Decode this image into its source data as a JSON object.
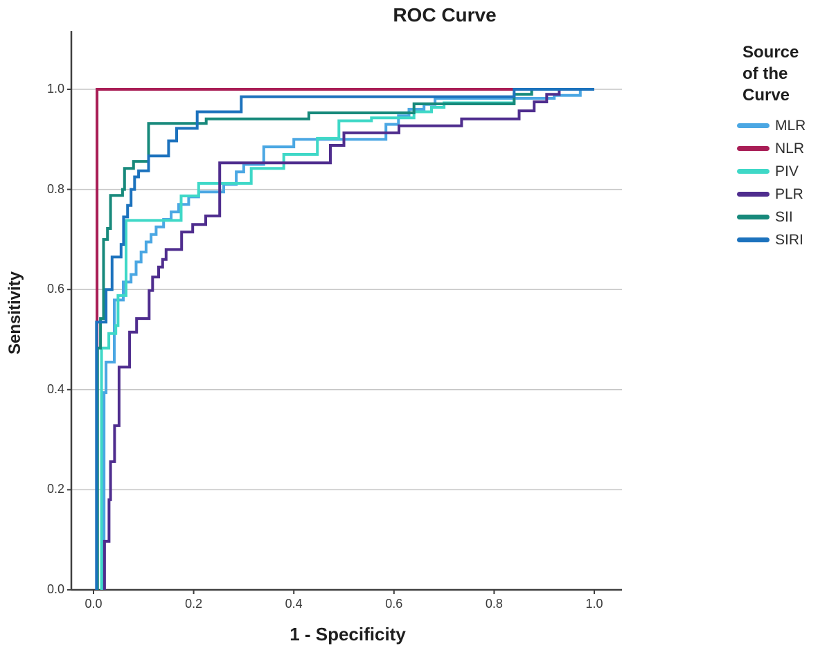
{
  "title": "ROC Curve",
  "axes": {
    "x": {
      "label": "1 - Specificity",
      "ticks": [
        "0.0",
        "0.2",
        "0.4",
        "0.6",
        "0.8",
        "1.0"
      ],
      "tick_values": [
        0,
        0.2,
        0.4,
        0.6,
        0.8,
        1.0
      ],
      "range": [
        0,
        1
      ]
    },
    "y": {
      "label": "Sensitivity",
      "ticks": [
        "0.0",
        "0.2",
        "0.4",
        "0.6",
        "0.8",
        "1.0"
      ],
      "tick_values": [
        0,
        0.2,
        0.4,
        0.6,
        0.8,
        1.0
      ],
      "range": [
        0,
        1
      ]
    }
  },
  "legend": {
    "title": "Source of the Curve",
    "title_lines": [
      "Source",
      "of the",
      "Curve"
    ],
    "entries": [
      "MLR",
      "NLR",
      "PIV",
      "PLR",
      "SII",
      "SIRI"
    ]
  },
  "colors": {
    "MLR": "#4BA7E3",
    "NLR": "#A91E56",
    "PIV": "#3FD8C7",
    "PLR": "#4F2D8E",
    "SII": "#17897B",
    "SIRI": "#1C72BD",
    "grid": "#c6c6c6",
    "axis": "#3f3f3f",
    "text": "#1e1e1e"
  },
  "chart_data": {
    "type": "line",
    "subtype": "roc-step-curves",
    "title": "ROC Curve",
    "xlabel": "1 - Specificity",
    "ylabel": "Sensitivity",
    "xlim": [
      0,
      1
    ],
    "ylim": [
      0,
      1
    ],
    "grid": "horizontal-only",
    "legend_position": "right",
    "legend_title": "Source of the Curve",
    "series": [
      {
        "name": "MLR",
        "color": "#4BA7E3",
        "points": [
          [
            0.021,
            0
          ],
          [
            0.021,
            0.394
          ],
          [
            0.025,
            0.394
          ],
          [
            0.025,
            0.455
          ],
          [
            0.0415,
            0.455
          ],
          [
            0.0415,
            0.579
          ],
          [
            0.0595,
            0.579
          ],
          [
            0.0595,
            0.615
          ],
          [
            0.075,
            0.615
          ],
          [
            0.075,
            0.63
          ],
          [
            0.085,
            0.63
          ],
          [
            0.085,
            0.655
          ],
          [
            0.095,
            0.655
          ],
          [
            0.095,
            0.675
          ],
          [
            0.105,
            0.675
          ],
          [
            0.105,
            0.695
          ],
          [
            0.115,
            0.695
          ],
          [
            0.115,
            0.71
          ],
          [
            0.125,
            0.71
          ],
          [
            0.125,
            0.725
          ],
          [
            0.14,
            0.725
          ],
          [
            0.14,
            0.74
          ],
          [
            0.155,
            0.74
          ],
          [
            0.155,
            0.755
          ],
          [
            0.17,
            0.755
          ],
          [
            0.17,
            0.77
          ],
          [
            0.19,
            0.77
          ],
          [
            0.19,
            0.785
          ],
          [
            0.21,
            0.785
          ],
          [
            0.21,
            0.795
          ],
          [
            0.26,
            0.795
          ],
          [
            0.26,
            0.81
          ],
          [
            0.285,
            0.81
          ],
          [
            0.285,
            0.835
          ],
          [
            0.3,
            0.835
          ],
          [
            0.3,
            0.85
          ],
          [
            0.34,
            0.85
          ],
          [
            0.34,
            0.885
          ],
          [
            0.4,
            0.885
          ],
          [
            0.4,
            0.9
          ],
          [
            0.44,
            0.9
          ],
          [
            0.584,
            0.9
          ],
          [
            0.584,
            0.93
          ],
          [
            0.609,
            0.93
          ],
          [
            0.609,
            0.947
          ],
          [
            0.63,
            0.947
          ],
          [
            0.63,
            0.96
          ],
          [
            0.66,
            0.96
          ],
          [
            0.66,
            0.97
          ],
          [
            0.682,
            0.97
          ],
          [
            0.682,
            0.982
          ],
          [
            0.92,
            0.982
          ],
          [
            0.92,
            0.988
          ],
          [
            0.972,
            0.988
          ],
          [
            0.972,
            1.0
          ],
          [
            1.0,
            1.0
          ]
        ]
      },
      {
        "name": "NLR",
        "color": "#A91E56",
        "points": [
          [
            0.007,
            0
          ],
          [
            0.007,
            1.0
          ],
          [
            1.0,
            1.0
          ]
        ]
      },
      {
        "name": "PIV",
        "color": "#3FD8C7",
        "points": [
          [
            0.016,
            0
          ],
          [
            0.016,
            0.483
          ],
          [
            0.0305,
            0.483
          ],
          [
            0.0305,
            0.512
          ],
          [
            0.0445,
            0.512
          ],
          [
            0.0445,
            0.528
          ],
          [
            0.049,
            0.528
          ],
          [
            0.049,
            0.588
          ],
          [
            0.065,
            0.588
          ],
          [
            0.065,
            0.738
          ],
          [
            0.175,
            0.738
          ],
          [
            0.175,
            0.787
          ],
          [
            0.21,
            0.787
          ],
          [
            0.21,
            0.812
          ],
          [
            0.315,
            0.812
          ],
          [
            0.315,
            0.842
          ],
          [
            0.38,
            0.842
          ],
          [
            0.38,
            0.87
          ],
          [
            0.447,
            0.87
          ],
          [
            0.447,
            0.902
          ],
          [
            0.49,
            0.902
          ],
          [
            0.49,
            0.937
          ],
          [
            0.555,
            0.937
          ],
          [
            0.555,
            0.943
          ],
          [
            0.64,
            0.943
          ],
          [
            0.64,
            0.955
          ],
          [
            0.675,
            0.955
          ],
          [
            0.675,
            0.964
          ],
          [
            0.7,
            0.964
          ],
          [
            0.7,
            0.973
          ],
          [
            0.84,
            0.973
          ],
          [
            0.84,
            0.99
          ],
          [
            0.875,
            0.99
          ],
          [
            0.875,
            1.0
          ],
          [
            1.0,
            1.0
          ]
        ]
      },
      {
        "name": "PLR",
        "color": "#4F2D8E",
        "points": [
          [
            0.022,
            0
          ],
          [
            0.022,
            0.097
          ],
          [
            0.031,
            0.097
          ],
          [
            0.031,
            0.18
          ],
          [
            0.034,
            0.18
          ],
          [
            0.034,
            0.256
          ],
          [
            0.042,
            0.256
          ],
          [
            0.042,
            0.328
          ],
          [
            0.051,
            0.328
          ],
          [
            0.051,
            0.445
          ],
          [
            0.072,
            0.445
          ],
          [
            0.072,
            0.515
          ],
          [
            0.086,
            0.515
          ],
          [
            0.086,
            0.542
          ],
          [
            0.111,
            0.542
          ],
          [
            0.111,
            0.598
          ],
          [
            0.118,
            0.598
          ],
          [
            0.118,
            0.625
          ],
          [
            0.13,
            0.625
          ],
          [
            0.13,
            0.645
          ],
          [
            0.138,
            0.645
          ],
          [
            0.138,
            0.66
          ],
          [
            0.145,
            0.66
          ],
          [
            0.145,
            0.68
          ],
          [
            0.176,
            0.68
          ],
          [
            0.176,
            0.715
          ],
          [
            0.198,
            0.715
          ],
          [
            0.198,
            0.73
          ],
          [
            0.224,
            0.73
          ],
          [
            0.224,
            0.747
          ],
          [
            0.252,
            0.747
          ],
          [
            0.252,
            0.853
          ],
          [
            0.473,
            0.853
          ],
          [
            0.473,
            0.888
          ],
          [
            0.5,
            0.888
          ],
          [
            0.5,
            0.913
          ],
          [
            0.61,
            0.913
          ],
          [
            0.61,
            0.927
          ],
          [
            0.735,
            0.927
          ],
          [
            0.735,
            0.941
          ],
          [
            0.85,
            0.941
          ],
          [
            0.85,
            0.957
          ],
          [
            0.88,
            0.957
          ],
          [
            0.88,
            0.975
          ],
          [
            0.905,
            0.975
          ],
          [
            0.905,
            0.99
          ],
          [
            0.93,
            0.99
          ],
          [
            0.93,
            1.0
          ],
          [
            1.0,
            1.0
          ]
        ]
      },
      {
        "name": "SII",
        "color": "#17897B",
        "points": [
          [
            0.008,
            0
          ],
          [
            0.008,
            0.483
          ],
          [
            0.014,
            0.483
          ],
          [
            0.014,
            0.542
          ],
          [
            0.02,
            0.542
          ],
          [
            0.02,
            0.7
          ],
          [
            0.028,
            0.7
          ],
          [
            0.028,
            0.722
          ],
          [
            0.034,
            0.722
          ],
          [
            0.034,
            0.788
          ],
          [
            0.058,
            0.788
          ],
          [
            0.058,
            0.8
          ],
          [
            0.062,
            0.8
          ],
          [
            0.062,
            0.842
          ],
          [
            0.08,
            0.842
          ],
          [
            0.08,
            0.856
          ],
          [
            0.11,
            0.856
          ],
          [
            0.11,
            0.932
          ],
          [
            0.225,
            0.932
          ],
          [
            0.225,
            0.941
          ],
          [
            0.43,
            0.941
          ],
          [
            0.43,
            0.953
          ],
          [
            0.64,
            0.953
          ],
          [
            0.64,
            0.971
          ],
          [
            0.84,
            0.971
          ],
          [
            0.84,
            0.99
          ],
          [
            0.875,
            0.99
          ],
          [
            0.875,
            1.0
          ],
          [
            1.0,
            1.0
          ]
        ]
      },
      {
        "name": "SIRI",
        "color": "#1C72BD",
        "points": [
          [
            0.006,
            0
          ],
          [
            0.006,
            0.535
          ],
          [
            0.025,
            0.535
          ],
          [
            0.025,
            0.6
          ],
          [
            0.037,
            0.6
          ],
          [
            0.037,
            0.665
          ],
          [
            0.055,
            0.665
          ],
          [
            0.055,
            0.69
          ],
          [
            0.06,
            0.69
          ],
          [
            0.06,
            0.745
          ],
          [
            0.068,
            0.745
          ],
          [
            0.068,
            0.768
          ],
          [
            0.075,
            0.768
          ],
          [
            0.075,
            0.8
          ],
          [
            0.082,
            0.8
          ],
          [
            0.082,
            0.825
          ],
          [
            0.09,
            0.825
          ],
          [
            0.09,
            0.837
          ],
          [
            0.11,
            0.837
          ],
          [
            0.11,
            0.867
          ],
          [
            0.15,
            0.867
          ],
          [
            0.15,
            0.897
          ],
          [
            0.166,
            0.897
          ],
          [
            0.166,
            0.922
          ],
          [
            0.207,
            0.922
          ],
          [
            0.207,
            0.955
          ],
          [
            0.295,
            0.955
          ],
          [
            0.295,
            0.985
          ],
          [
            0.84,
            0.985
          ],
          [
            0.84,
            1.0
          ],
          [
            1.0,
            1.0
          ]
        ]
      }
    ],
    "draw_order": [
      "MLR",
      "NLR",
      "PIV",
      "PLR",
      "SII",
      "SIRI"
    ]
  }
}
